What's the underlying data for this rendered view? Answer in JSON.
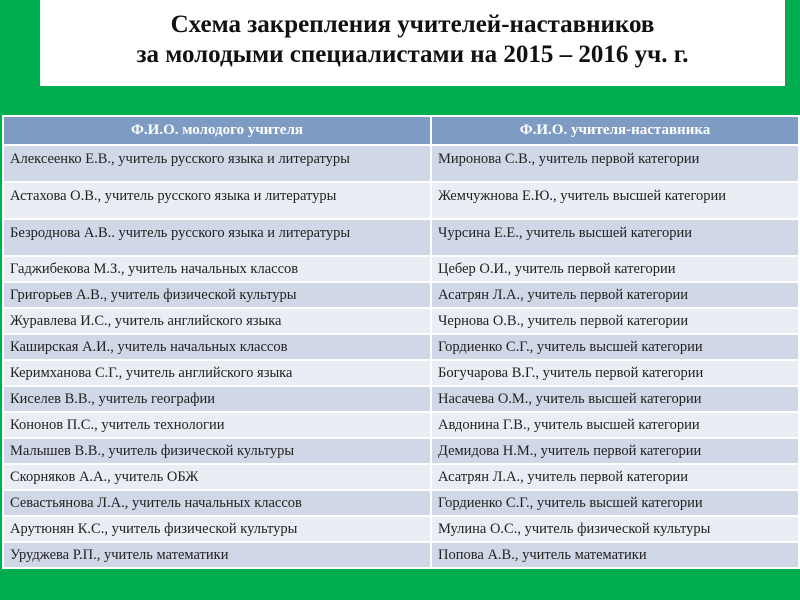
{
  "title": {
    "line1": "Схема закрепления учителей-наставников",
    "line2": "за молодыми специалистами на 2015 – 2016 уч. г."
  },
  "colors": {
    "background": "#00ad4f",
    "header": "#7e9bc4",
    "row_odd": "#d0d8e7",
    "row_even": "#e9edf4"
  },
  "table": {
    "headers": [
      "Ф.И.О. молодого учителя",
      "Ф.И.О. учителя-наставника"
    ],
    "rows": [
      [
        "Алексеенко Е.В., учитель русского языка и литературы",
        "Миронова С.В., учитель первой категории"
      ],
      [
        "Астахова О.В., учитель русского языка и литературы",
        "Жемчужнова Е.Ю., учитель высшей категории"
      ],
      [
        "Безроднова А.В.. учитель русского языка и литературы",
        "Чурсина Е.Е., учитель высшей категории"
      ],
      [
        "Гаджибекова М.З., учитель начальных классов",
        "Цебер О.И., учитель первой категории"
      ],
      [
        "Григорьев А.В., учитель физической культуры",
        "Асатрян Л.А., учитель первой категории"
      ],
      [
        "Журавлева И.С., учитель английского языка",
        "Чернова О.В., учитель первой  категории"
      ],
      [
        "Каширская А.И., учитель начальных классов",
        "Гордиенко С.Г., учитель высшей категории"
      ],
      [
        "Керимханова С.Г., учитель английского языка",
        "Богучарова В.Г., учитель первой  категории"
      ],
      [
        "Киселев В.В., учитель географии",
        "Насачева О.М., учитель высшей категории"
      ],
      [
        "Кононов П.С., учитель технологии",
        "Авдонина Г.В., учитель высшей категории"
      ],
      [
        "Малышев В.В., учитель физической культуры",
        "Демидова Н.М., учитель первой  категории"
      ],
      [
        "Скорняков А.А., учитель ОБЖ",
        "Асатрян Л.А., учитель первой категории"
      ],
      [
        "Севастьянова Л.А., учитель начальных классов",
        "Гордиенко С.Г., учитель высшей категории"
      ],
      [
        "Арутюнян К.С., учитель физической культуры",
        "Мулина О.С., учитель физической культуры"
      ],
      [
        "Уруджева Р.П., учитель математики",
        "Попова А.В., учитель математики"
      ]
    ]
  }
}
